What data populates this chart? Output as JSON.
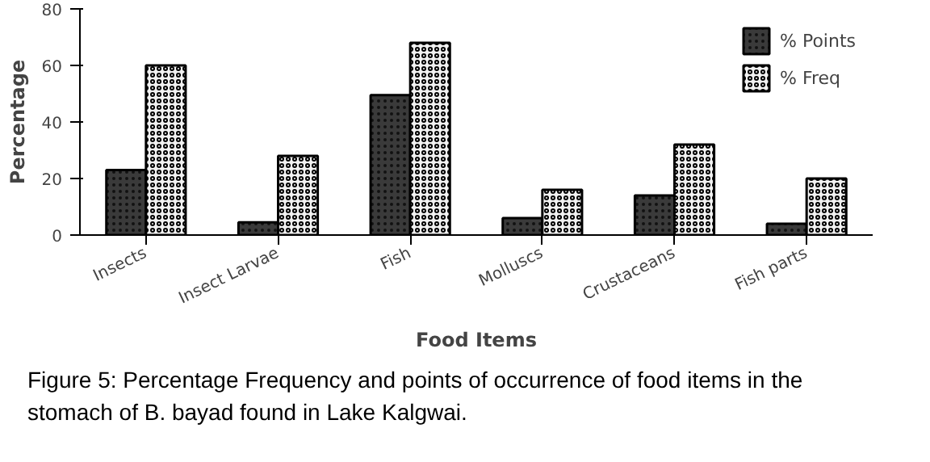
{
  "chart_data": {
    "type": "bar",
    "xlabel": "Food Items",
    "ylabel": "Percentage",
    "categories": [
      "Insects",
      "Insect Larvae",
      "Fish",
      "Molluscs",
      "Crustaceans",
      "Fish parts"
    ],
    "series": [
      {
        "name": "% Points",
        "color": "#3a3a3a",
        "values": [
          23,
          4.5,
          49.5,
          6,
          14,
          4
        ]
      },
      {
        "name": "% Freq",
        "color": "#f2f2f2",
        "values": [
          60,
          28,
          68,
          16,
          32,
          20
        ]
      }
    ],
    "ylim": [
      0,
      80
    ],
    "yticks": [
      0,
      20,
      40,
      60,
      80
    ],
    "grid": false,
    "legend": "top right",
    "annotations": [
      "Figure 5: Percentage Frequency and points of occurrence of food items in the stomach of B. bayad found in Lake Kalgwai."
    ]
  }
}
